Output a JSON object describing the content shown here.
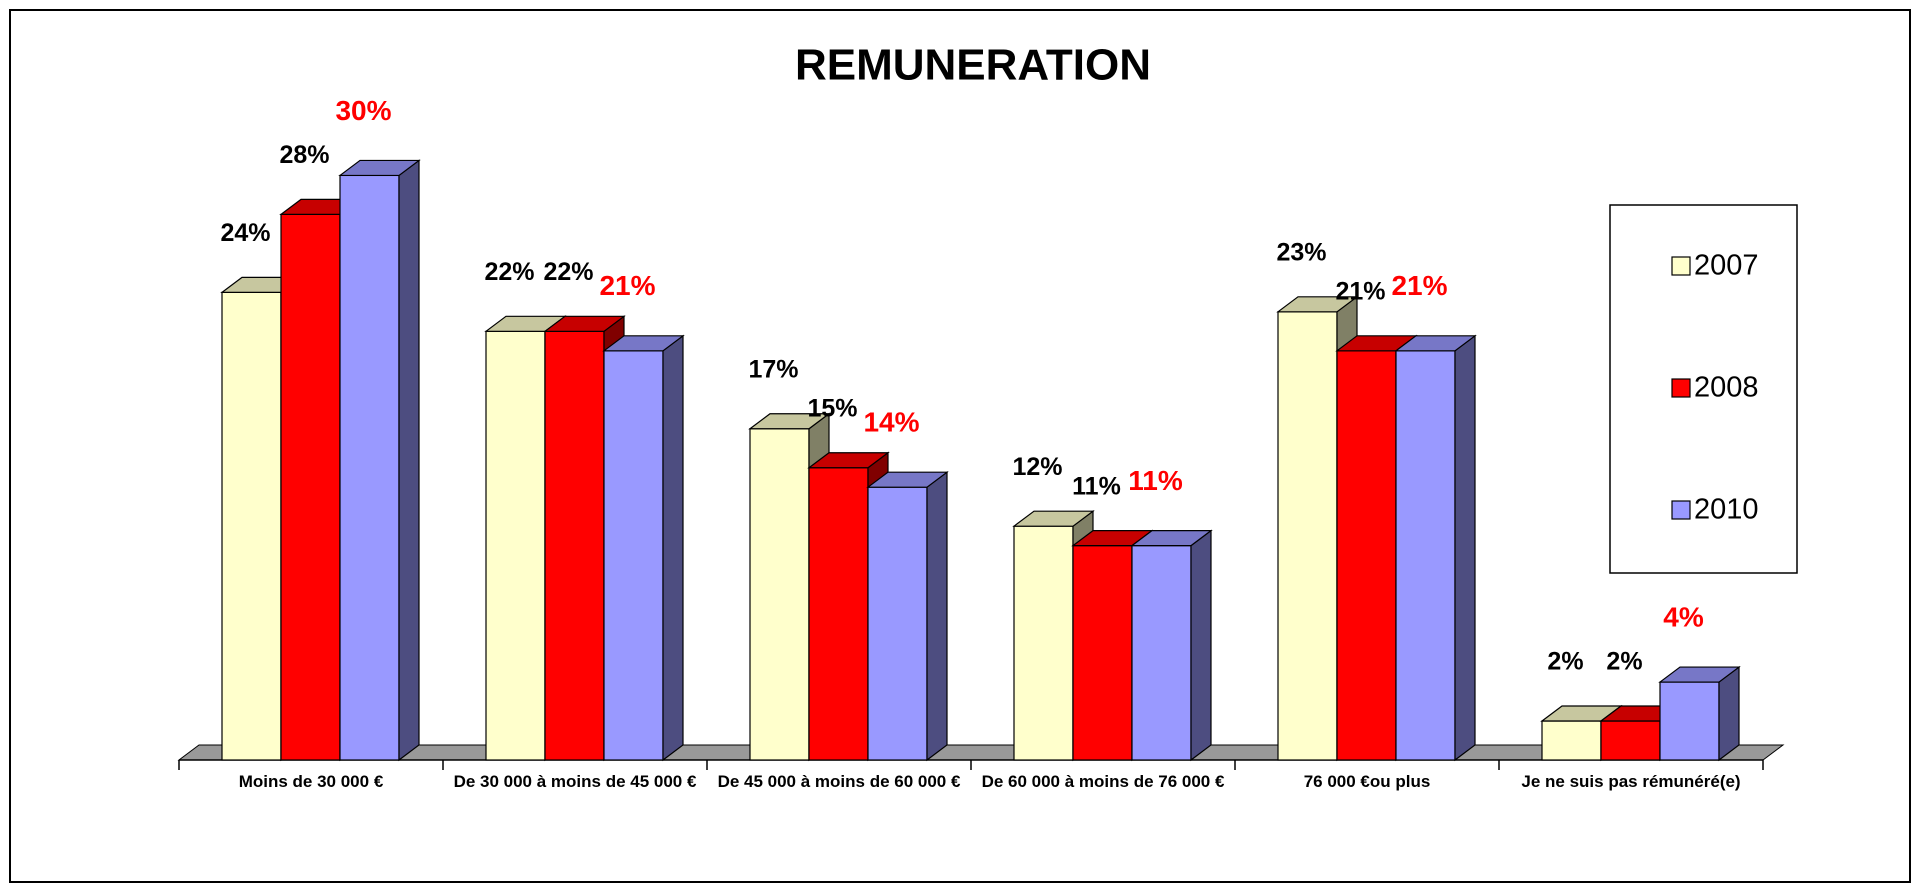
{
  "chart_data": {
    "type": "bar3d",
    "title": "REMUNERATION",
    "categories": [
      "Moins de 30 000 €",
      "De 30 000 à moins de 45 000 €",
      "De 45 000 à moins de 60 000 €",
      "De 60 000 à moins de 76 000 €",
      "76 000 €ou plus",
      "Je ne suis pas rémunéré(e)"
    ],
    "series": [
      {
        "name": "2007",
        "color": "#FFFFCC",
        "label_color": "#000000",
        "values": [
          24,
          22,
          17,
          12,
          23,
          2
        ],
        "value_labels": [
          "24%",
          "22%",
          "17%",
          "12%",
          "23%",
          "2%"
        ]
      },
      {
        "name": "2008",
        "color": "#FF0000",
        "label_color": "#000000",
        "values": [
          28,
          22,
          15,
          11,
          21,
          2
        ],
        "value_labels": [
          "28%",
          "22%",
          "15%",
          "11%",
          "21%",
          "2%"
        ]
      },
      {
        "name": "2010",
        "color": "#9999FF",
        "label_color": "#FF0000",
        "values": [
          30,
          21,
          14,
          11,
          21,
          4
        ],
        "value_labels": [
          "30%",
          "21%",
          "14%",
          "11%",
          "21%",
          "4%"
        ]
      }
    ],
    "ylim": [
      0,
      35
    ],
    "legend": "right"
  }
}
